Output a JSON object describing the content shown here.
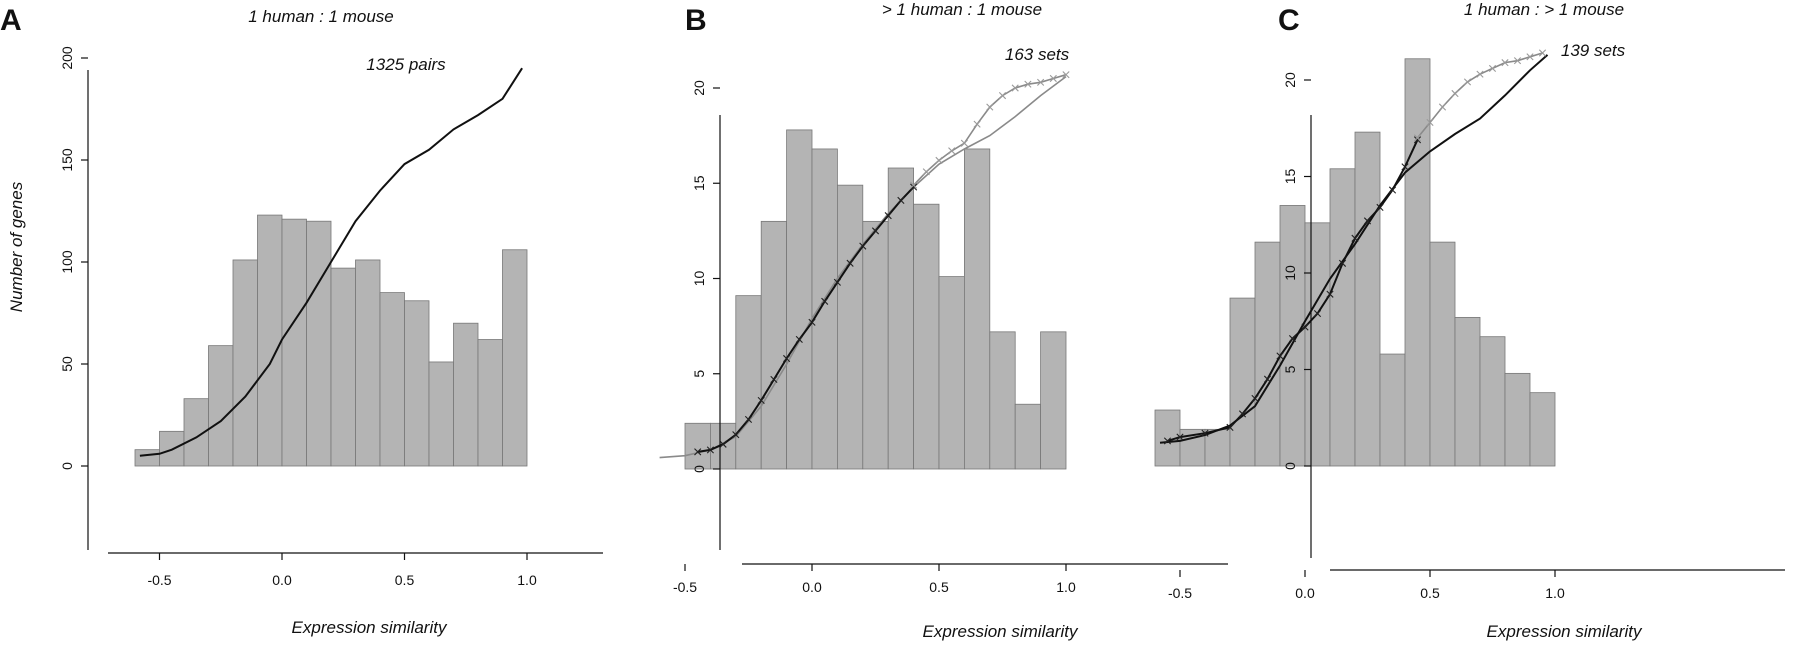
{
  "figure": {
    "shared_xlabel": "Expression similarity",
    "shared_ylabel": "Number of genes"
  },
  "chart_data": [
    {
      "type": "bar",
      "panel_label": "A",
      "title": "1 human : 1 mouse",
      "subtitle": "1325 pairs",
      "xlabel": "Expression similarity",
      "ylabel": "Number of genes",
      "xlim": [
        -0.75,
        1.0
      ],
      "ylim": [
        0,
        200
      ],
      "xticks": [
        "-0.5",
        "0.0",
        "0.5",
        "1.0"
      ],
      "yticks": [
        "0",
        "50",
        "100",
        "150",
        "200"
      ],
      "bin_edges": [
        -0.6,
        -0.5,
        -0.4,
        -0.3,
        -0.2,
        -0.1,
        0.0,
        0.1,
        0.2,
        0.3,
        0.4,
        0.5,
        0.6,
        0.7,
        0.8,
        0.9,
        1.0
      ],
      "values": [
        8,
        17,
        33,
        59,
        101,
        123,
        121,
        120,
        97,
        101,
        85,
        81,
        51,
        70,
        62,
        106
      ],
      "curves": [
        {
          "style": "black",
          "markers": false,
          "x": [
            -0.58,
            -0.5,
            -0.45,
            -0.35,
            -0.25,
            -0.15,
            -0.05,
            0.0,
            0.1,
            0.2,
            0.3,
            0.4,
            0.5,
            0.6,
            0.7,
            0.8,
            0.9,
            0.98
          ],
          "y": [
            5,
            6,
            8,
            14,
            22,
            34,
            50,
            62,
            80,
            100,
            120,
            135,
            148,
            155,
            165,
            172,
            180,
            195
          ]
        }
      ]
    },
    {
      "type": "bar",
      "panel_label": "B",
      "title": "> 1 human : 1 mouse",
      "subtitle": "163 sets",
      "xlabel": "Expression similarity",
      "ylabel": "",
      "xlim": [
        -0.65,
        1.0
      ],
      "ylim": [
        0,
        20
      ],
      "xticks": [
        "-0.5",
        "0.0",
        "0.5",
        "1.0"
      ],
      "yticks": [
        "0",
        "5",
        "10",
        "15",
        "20"
      ],
      "bin_edges": [
        -0.5,
        -0.4,
        -0.3,
        -0.2,
        -0.1,
        0.0,
        0.1,
        0.2,
        0.3,
        0.4,
        0.5,
        0.6,
        0.7,
        0.8,
        0.9,
        1.0
      ],
      "values": [
        2.4,
        2.4,
        9.1,
        13.0,
        17.8,
        16.8,
        14.9,
        13.0,
        15.8,
        13.9,
        10.1,
        16.8,
        7.2,
        3.4,
        7.2
      ],
      "curves": [
        {
          "style": "grey",
          "markers": false,
          "x": [
            -0.6,
            -0.5,
            -0.4,
            -0.3,
            -0.2,
            -0.1,
            0.0,
            0.1,
            0.2,
            0.3,
            0.4,
            0.5,
            0.6,
            0.7,
            0.8,
            0.9,
            1.0
          ],
          "y": [
            0.6,
            0.7,
            1.0,
            1.7,
            3.3,
            5.5,
            7.9,
            10.0,
            11.8,
            13.4,
            14.8,
            16.0,
            16.8,
            17.5,
            18.5,
            19.6,
            20.6
          ]
        },
        {
          "style": "dark-x",
          "markers": true,
          "x": [
            -0.45,
            -0.4,
            -0.35,
            -0.3,
            -0.25,
            -0.2,
            -0.15,
            -0.1,
            -0.05,
            0.0,
            0.05,
            0.1,
            0.15,
            0.2,
            0.25,
            0.3,
            0.35,
            0.4
          ],
          "y": [
            0.9,
            1.0,
            1.3,
            1.8,
            2.6,
            3.6,
            4.7,
            5.8,
            6.8,
            7.7,
            8.8,
            9.8,
            10.8,
            11.7,
            12.5,
            13.3,
            14.1,
            14.8
          ]
        },
        {
          "style": "light-x",
          "markers": true,
          "x": [
            0.4,
            0.45,
            0.5,
            0.55,
            0.6,
            0.65,
            0.7,
            0.75,
            0.8,
            0.85,
            0.9,
            0.95,
            1.0
          ],
          "y": [
            14.9,
            15.6,
            16.2,
            16.7,
            17.1,
            18.1,
            19.0,
            19.6,
            20.0,
            20.2,
            20.3,
            20.5,
            20.7
          ]
        }
      ]
    },
    {
      "type": "bar",
      "panel_label": "C",
      "title": "1 human : > 1 mouse",
      "subtitle": "139 sets",
      "xlabel": "Expression similarity",
      "ylabel": "",
      "xlim": [
        -0.6,
        1.0
      ],
      "ylim": [
        0,
        22
      ],
      "xticks": [
        "-0.5",
        "0.0",
        "0.5",
        "1.0"
      ],
      "yticks": [
        "0",
        "5",
        "10",
        "15",
        "20"
      ],
      "bin_edges": [
        -0.6,
        -0.5,
        -0.4,
        -0.3,
        -0.2,
        -0.1,
        0.0,
        0.1,
        0.2,
        0.3,
        0.4,
        0.5,
        0.6,
        0.7,
        0.8,
        0.9,
        1.0
      ],
      "values": [
        2.9,
        1.9,
        1.9,
        8.7,
        11.6,
        13.5,
        12.6,
        15.4,
        17.3,
        5.8,
        21.1,
        11.6,
        7.7,
        6.7,
        4.8,
        3.8
      ],
      "curves": [
        {
          "style": "black",
          "markers": false,
          "x": [
            -0.58,
            -0.5,
            -0.4,
            -0.3,
            -0.2,
            -0.1,
            0.0,
            0.1,
            0.2,
            0.3,
            0.4,
            0.5,
            0.6,
            0.7,
            0.8,
            0.9,
            0.97
          ],
          "y": [
            1.2,
            1.3,
            1.6,
            2.1,
            3.1,
            5.2,
            7.5,
            9.7,
            11.5,
            13.5,
            15.2,
            16.3,
            17.2,
            18.0,
            19.2,
            20.5,
            21.3
          ]
        },
        {
          "style": "dark-x",
          "markers": true,
          "x": [
            -0.55,
            -0.5,
            -0.4,
            -0.3,
            -0.25,
            -0.2,
            -0.15,
            -0.1,
            -0.05,
            0.0,
            0.05,
            0.1,
            0.15,
            0.2,
            0.25,
            0.3,
            0.35,
            0.4,
            0.45
          ],
          "y": [
            1.3,
            1.5,
            1.7,
            2.0,
            2.7,
            3.5,
            4.5,
            5.7,
            6.6,
            7.2,
            7.9,
            8.9,
            10.5,
            11.8,
            12.7,
            13.4,
            14.3,
            15.5,
            16.9
          ]
        },
        {
          "style": "light-x",
          "markers": true,
          "x": [
            0.45,
            0.5,
            0.55,
            0.6,
            0.65,
            0.7,
            0.75,
            0.8,
            0.85,
            0.9,
            0.95
          ],
          "y": [
            17.0,
            17.8,
            18.6,
            19.3,
            19.9,
            20.3,
            20.6,
            20.9,
            21.0,
            21.2,
            21.4
          ]
        }
      ]
    }
  ]
}
